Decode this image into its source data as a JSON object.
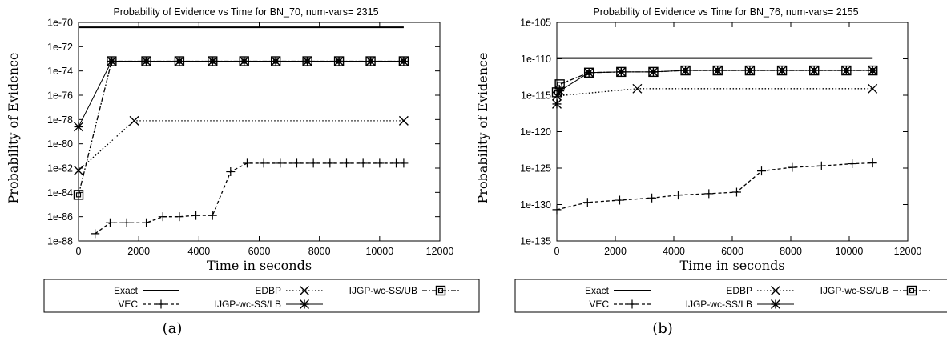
{
  "chart_data": [
    {
      "type": "line",
      "title": "Probability of Evidence vs Time for BN_70, num-vars= 2315",
      "xlabel": "Time in seconds",
      "ylabel": "Probability of Evidence",
      "y_scale": "log10",
      "xlim": [
        0,
        12000
      ],
      "ylim_exponent": [
        -88,
        -70
      ],
      "x_ticks": [
        "0",
        "2000",
        "4000",
        "6000",
        "8000",
        "10000",
        "12000"
      ],
      "y_ticks": [
        "1e-70",
        "1e-72",
        "1e-74",
        "1e-76",
        "1e-78",
        "1e-80",
        "1e-82",
        "1e-84",
        "1e-86",
        "1e-88"
      ],
      "legend": [
        "Exact",
        "EDBP",
        "IJGP-wc-SS/UB",
        "VEC",
        "IJGP-wc-SS/LB"
      ],
      "legend_position": "below plot",
      "caption": "(a)",
      "series": [
        {
          "name": "Exact",
          "x": [
            0,
            10800
          ],
          "log10_y": [
            -70.4,
            -70.4
          ]
        },
        {
          "name": "VEC",
          "x": [
            550,
            1050,
            1600,
            2250,
            2800,
            3350,
            3900,
            4450,
            5050,
            5600,
            6150,
            6700,
            7250,
            7800,
            8350,
            8900,
            9450,
            10000,
            10550,
            10800
          ],
          "log10_y": [
            -87.4,
            -86.5,
            -86.5,
            -86.5,
            -86.0,
            -86.0,
            -85.9,
            -85.9,
            -82.3,
            -81.6,
            -81.6,
            -81.6,
            -81.6,
            -81.6,
            -81.6,
            -81.6,
            -81.6,
            -81.6,
            -81.6,
            -81.6
          ]
        },
        {
          "name": "EDBP",
          "x": [
            0,
            1850,
            10800
          ],
          "log10_y": [
            -82.2,
            -78.1,
            -78.1
          ]
        },
        {
          "name": "IJGP-wc-SS/LB",
          "x": [
            0,
            1100,
            2250,
            3350,
            4450,
            5500,
            6550,
            7600,
            8650,
            9700,
            10800
          ],
          "log10_y": [
            -78.6,
            -73.2,
            -73.2,
            -73.2,
            -73.2,
            -73.2,
            -73.2,
            -73.2,
            -73.2,
            -73.2,
            -73.2
          ]
        },
        {
          "name": "IJGP-wc-SS/UB",
          "x": [
            0,
            1100,
            2250,
            3350,
            4450,
            5500,
            6550,
            7600,
            8650,
            9700,
            10800
          ],
          "log10_y": [
            -84.2,
            -73.2,
            -73.2,
            -73.2,
            -73.2,
            -73.2,
            -73.2,
            -73.2,
            -73.2,
            -73.2,
            -73.2
          ]
        }
      ]
    },
    {
      "type": "line",
      "title": "Probability of Evidence vs Time for BN_76, num-vars= 2155",
      "xlabel": "Time in seconds",
      "ylabel": "Probability of Evidence",
      "y_scale": "log10",
      "xlim": [
        0,
        12000
      ],
      "ylim_exponent": [
        -135,
        -105
      ],
      "x_ticks": [
        "0",
        "2000",
        "4000",
        "6000",
        "8000",
        "10000",
        "12000"
      ],
      "y_ticks": [
        "1e-105",
        "1e-110",
        "1e-115",
        "1e-120",
        "1e-125",
        "1e-130",
        "1e-135"
      ],
      "legend": [
        "Exact",
        "EDBP",
        "IJGP-wc-SS/UB",
        "VEC",
        "IJGP-wc-SS/LB"
      ],
      "legend_position": "below plot",
      "caption": "(b)",
      "series": [
        {
          "name": "Exact",
          "x": [
            0,
            10800
          ],
          "log10_y": [
            -109.9,
            -109.9
          ]
        },
        {
          "name": "VEC",
          "x": [
            0,
            1050,
            2150,
            3250,
            4150,
            5200,
            6150,
            7000,
            8050,
            9050,
            10100,
            10800
          ],
          "log10_y": [
            -130.7,
            -129.7,
            -129.4,
            -129.1,
            -128.7,
            -128.5,
            -128.3,
            -125.4,
            -124.9,
            -124.7,
            -124.4,
            -124.3
          ]
        },
        {
          "name": "EDBP",
          "x": [
            0,
            2750,
            10800
          ],
          "log10_y": [
            -115.1,
            -114.1,
            -114.1
          ]
        },
        {
          "name": "IJGP-wc-SS/LB",
          "x": [
            0,
            100,
            1100,
            2200,
            3300,
            4400,
            5500,
            6600,
            7700,
            8800,
            9900,
            10800
          ],
          "log10_y": [
            -116.2,
            -114.4,
            -111.9,
            -111.8,
            -111.8,
            -111.6,
            -111.6,
            -111.6,
            -111.6,
            -111.6,
            -111.6,
            -111.6
          ]
        },
        {
          "name": "IJGP-wc-SS/UB",
          "x": [
            0,
            100,
            1100,
            2200,
            3300,
            4400,
            5500,
            6600,
            7700,
            8800,
            9900,
            10800
          ],
          "log10_y": [
            -114.6,
            -113.5,
            -111.9,
            -111.8,
            -111.8,
            -111.6,
            -111.6,
            -111.6,
            -111.6,
            -111.6,
            -111.6,
            -111.6
          ]
        }
      ]
    }
  ]
}
